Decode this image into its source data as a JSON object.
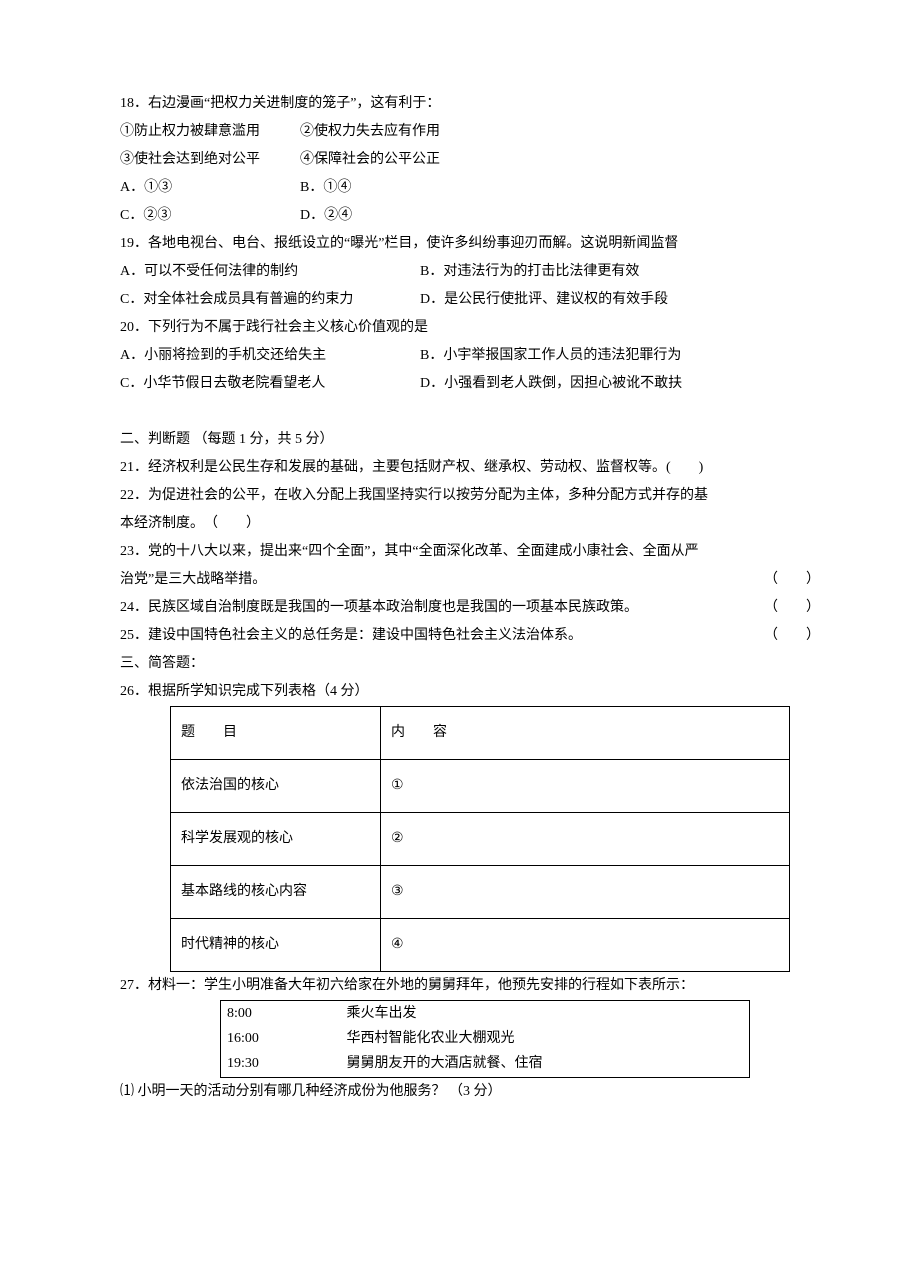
{
  "q18": {
    "stem": "18．右边漫画“把权力关进制度的笼子”，这有利于：",
    "opt1": "①防止权力被肆意滥用",
    "opt2": "②使权力失去应有作用",
    "opt3": "③使社会达到绝对公平",
    "opt4": "④保障社会的公平公正",
    "A": "A．①③",
    "B": "B．①④",
    "C": "C．②③",
    "D": "D．②④"
  },
  "q19": {
    "stem": "19．各地电视台、电台、报纸设立的“曝光”栏目，使许多纠纷事迎刃而解。这说明新闻监督",
    "A": "A．可以不受任何法律的制约",
    "B": "B．对违法行为的打击比法律更有效",
    "C": "C．对全体社会成员具有普遍的约束力",
    "D": "D．是公民行使批评、建议权的有效手段"
  },
  "q20": {
    "stem": "20．下列行为不属于践行社会主义核心价值观的是",
    "A": "A．小丽将捡到的手机交还给失主",
    "B": "B．小宇举报国家工作人员的违法犯罪行为",
    "C": "C．小华节假日去敬老院看望老人",
    "D": "D．小强看到老人跌倒，因担心被讹不敢扶"
  },
  "section2": {
    "title": "二、判断题 （每题 1 分，共 5 分）",
    "q21": "21．经济权利是公民生存和发展的基础，主要包括财产权、继承权、劳动权、监督权等。(　　)",
    "q22a": "22．为促进社会的公平，在收入分配上我国坚持实行以按劳分配为主体，多种分配方式并存的基",
    "q22b": "本经济制度。　（　　）",
    "q23a": "23．党的十八大以来，提出来“四个全面”，其中“全面深化改革、全面建成小康社会、全面从严",
    "q23b_left": "治党”是三大战略举措。",
    "q23b_right": "（　　）",
    "q24_left": "24．民族区域自治制度既是我国的一项基本政治制度也是我国的一项基本民族政策。",
    "q24_right": "（　　）",
    "q25_left": "25．建设中国特色社会主义的总任务是：建设中国特色社会主义法治体系。",
    "q25_right": "（　　）"
  },
  "section3": {
    "title": "三、简答题：",
    "q26": "26．根据所学知识完成下列表格（4 分）"
  },
  "table1": {
    "h1": "题　　目",
    "h2": "内　　容",
    "r1c1": "依法治国的核心",
    "r1c2": "①",
    "r2c1": "科学发展观的核心",
    "r2c2": "②",
    "r3c1": "基本路线的核心内容",
    "r3c2": "③",
    "r4c1": "时代精神的核心",
    "r4c2": "④"
  },
  "q27": {
    "stem": "27．材料一：学生小明准备大年初六给家在外地的舅舅拜年，他预先安排的行程如下表所示："
  },
  "table2": {
    "r1c1": "8:00",
    "r1c2": "乘火车出发",
    "r2c1": "16:00",
    "r2c2": "华西村智能化农业大棚观光",
    "r3c1": "19:30",
    "r3c2": "舅舅朋友开的大酒店就餐、住宿"
  },
  "q27sub": "⑴ 小明一天的活动分别有哪几种经济成份为他服务？ （3 分）"
}
